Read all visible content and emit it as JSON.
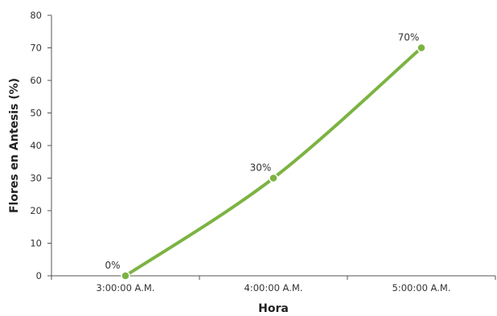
{
  "chart_data": {
    "type": "line",
    "categories": [
      "3:00:00 A.M.",
      "4:00:00 A.M.",
      "5:00:00 A.M."
    ],
    "series": [
      {
        "values": [
          0,
          30,
          70
        ],
        "color": "#7cb342"
      }
    ],
    "data_labels": [
      "0%",
      "30%",
      "70%"
    ],
    "xlabel": "Hora",
    "ylabel": "Flores en Antesis (%)",
    "ylim": [
      0,
      80
    ],
    "yticks": [
      0,
      10,
      20,
      30,
      40,
      50,
      60,
      70,
      80
    ],
    "grid": false,
    "legend": "none"
  }
}
